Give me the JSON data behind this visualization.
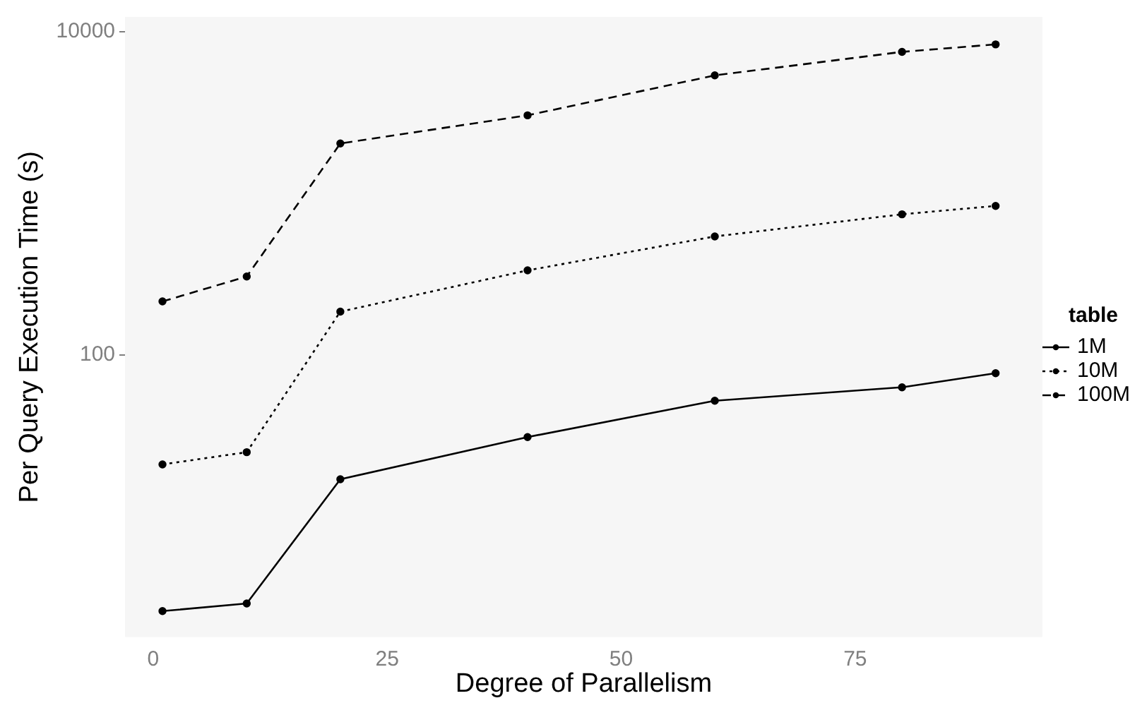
{
  "chart_data": {
    "type": "line",
    "xlabel": "Degree of Parallelism",
    "ylabel": "Per Query Execution Time (s)",
    "legend_title": "table",
    "legend": "right",
    "log": "y",
    "marker": "circle",
    "grid": false,
    "x": [
      1,
      10,
      20,
      40,
      60,
      80,
      90
    ],
    "xlim": [
      -3,
      95
    ],
    "xticks": [
      0,
      25,
      50,
      75
    ],
    "ylim": [
      1.8,
      12300
    ],
    "yticks": [
      100,
      10000
    ],
    "series": [
      {
        "name": "1M",
        "color": "#000000",
        "line_style": "solid",
        "values": [
          2.6,
          2.9,
          17,
          31,
          52,
          63,
          77
        ]
      },
      {
        "name": "10M",
        "color": "#000000",
        "line_style": "dotted",
        "values": [
          21,
          25,
          185,
          333,
          540,
          740,
          834
        ]
      },
      {
        "name": "100M",
        "color": "#000000",
        "line_style": "dashed",
        "values": [
          214,
          305,
          2030,
          3030,
          5350,
          7480,
          8320
        ]
      }
    ]
  }
}
